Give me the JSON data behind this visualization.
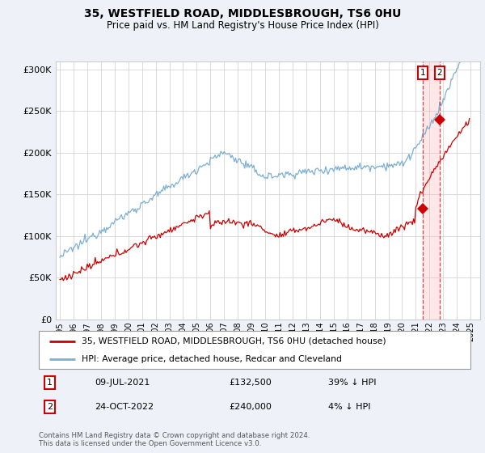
{
  "title": "35, WESTFIELD ROAD, MIDDLESBROUGH, TS6 0HU",
  "subtitle": "Price paid vs. HM Land Registry's House Price Index (HPI)",
  "legend_line1": "35, WESTFIELD ROAD, MIDDLESBROUGH, TS6 0HU (detached house)",
  "legend_line2": "HPI: Average price, detached house, Redcar and Cleveland",
  "transaction1_date": "09-JUL-2021",
  "transaction1_price": 132500,
  "transaction1_hpi": 216000,
  "transaction1_label": "39% ↓ HPI",
  "transaction2_date": "24-OCT-2022",
  "transaction2_price": 240000,
  "transaction2_hpi": 249000,
  "transaction2_label": "4% ↓ HPI",
  "footnote": "Contains HM Land Registry data © Crown copyright and database right 2024.\nThis data is licensed under the Open Government Licence v3.0.",
  "hpi_color": "#7bafd4",
  "price_color": "#cc0000",
  "background_color": "#eef2f8",
  "plot_bg_color": "#ffffff",
  "grid_color": "#cccccc",
  "ylim": [
    0,
    310000
  ],
  "yticks": [
    0,
    50000,
    100000,
    150000,
    200000,
    250000,
    300000
  ],
  "xlim_left": 1994.7,
  "xlim_right": 2025.7
}
